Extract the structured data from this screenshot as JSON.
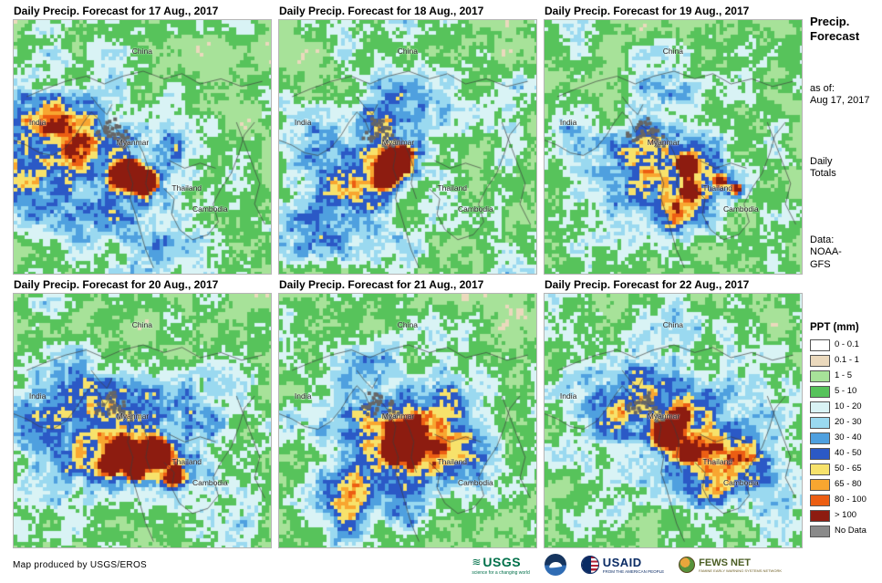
{
  "panels": [
    {
      "title": "Daily Precip. Forecast for 17 Aug., 2017",
      "labels": [
        "China",
        "India",
        "Myanmar",
        "Thailand",
        "Cambodia"
      ]
    },
    {
      "title": "Daily Precip. Forecast for 18 Aug., 2017",
      "labels": [
        "China",
        "India",
        "Myanmar",
        "Thailand",
        "Cambodia"
      ]
    },
    {
      "title": "Daily Precip. Forecast for 19 Aug., 2017",
      "labels": [
        "China",
        "India",
        "Myanmar",
        "Thailand",
        "Cambodia"
      ]
    },
    {
      "title": "Daily Precip. Forecast for 20 Aug., 2017",
      "labels": [
        "China",
        "India",
        "Myanmar",
        "Thailand",
        "Cambodia"
      ]
    },
    {
      "title": "Daily Precip. Forecast for 21 Aug., 2017",
      "labels": [
        "China",
        "India",
        "Myanmar",
        "Thailand",
        "Cambodia"
      ]
    },
    {
      "title": "Daily Precip. Forecast for 22 Aug., 2017",
      "labels": [
        "China",
        "India",
        "Myanmar",
        "Thailand",
        "Cambodia"
      ]
    }
  ],
  "sidebar": {
    "title": "Precip. Forecast",
    "as_of_label": "as of:",
    "as_of_value": "Aug 17, 2017",
    "totals": "Daily Totals",
    "data_label": "Data:",
    "data_value": "NOAA-GFS"
  },
  "legend": {
    "title": "PPT (mm)",
    "items": [
      {
        "label": "0 - 0.1",
        "color": "#FFFFFF"
      },
      {
        "label": "0.1 - 1",
        "color": "#EBD9BD"
      },
      {
        "label": "1 - 5",
        "color": "#A7E299"
      },
      {
        "label": "5 - 10",
        "color": "#57C35B"
      },
      {
        "label": "10 - 20",
        "color": "#D9F3F5"
      },
      {
        "label": "20 - 30",
        "color": "#9AD9F0"
      },
      {
        "label": "30 - 40",
        "color": "#4FA0DF"
      },
      {
        "label": "40 - 50",
        "color": "#2B59C6"
      },
      {
        "label": "50 - 65",
        "color": "#F7E26B"
      },
      {
        "label": "65 - 80",
        "color": "#F8A630"
      },
      {
        "label": "80 - 100",
        "color": "#EC5E13"
      },
      {
        "label": "> 100",
        "color": "#8D1C10"
      },
      {
        "label": "No Data",
        "color": "#8A8A8A"
      }
    ]
  },
  "footer": {
    "credit": "Map produced by USGS/EROS"
  },
  "logos": {
    "usgs": {
      "name": "USGS",
      "tagline": "science for a changing world"
    },
    "noaa": {
      "name": "NOAA"
    },
    "usaid": {
      "name": "USAID",
      "tagline": "FROM THE AMERICAN PEOPLE"
    },
    "fewsnet": {
      "name": "FEWS NET",
      "tagline": "FAMINE EARLY WARNING SYSTEMS NETWORK"
    }
  }
}
